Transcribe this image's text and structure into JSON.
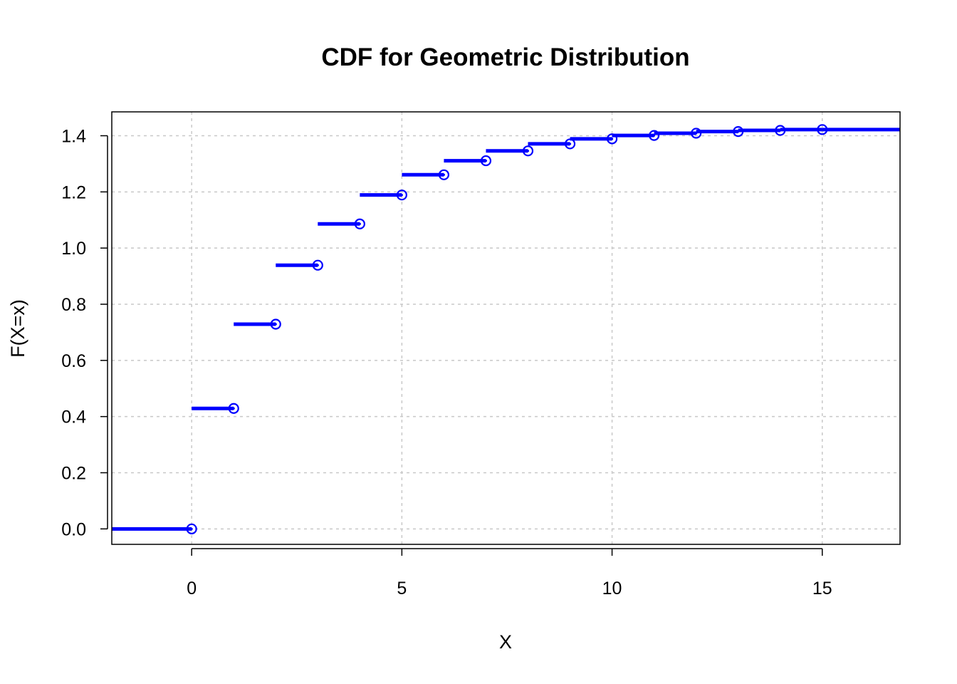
{
  "chart_data": {
    "type": "line",
    "title": "CDF for Geometric Distribution",
    "xlabel": "X",
    "ylabel": "F(X=x)",
    "xlim": [
      -1.9,
      16.85
    ],
    "ylim": [
      -0.055,
      1.485
    ],
    "x_ticks": [
      0,
      5,
      10,
      15
    ],
    "x_tick_labels": [
      "0",
      "5",
      "10",
      "15"
    ],
    "y_ticks": [
      0.0,
      0.2,
      0.4,
      0.6,
      0.8,
      1.0,
      1.2,
      1.4
    ],
    "y_tick_labels": [
      "0.0",
      "0.2",
      "0.4",
      "0.6",
      "0.8",
      "1.0",
      "1.2",
      "1.4"
    ],
    "grid": true,
    "step_style": "right-closed step function",
    "series": [
      {
        "color": "#0000ff",
        "x": [
          0,
          1,
          2,
          3,
          4,
          5,
          6,
          7,
          8,
          9,
          10,
          11,
          12,
          13,
          14,
          15
        ],
        "y": [
          0.0,
          0.429,
          0.729,
          0.939,
          1.086,
          1.189,
          1.261,
          1.311,
          1.346,
          1.371,
          1.389,
          1.401,
          1.409,
          1.415,
          1.419,
          1.422
        ]
      }
    ]
  }
}
